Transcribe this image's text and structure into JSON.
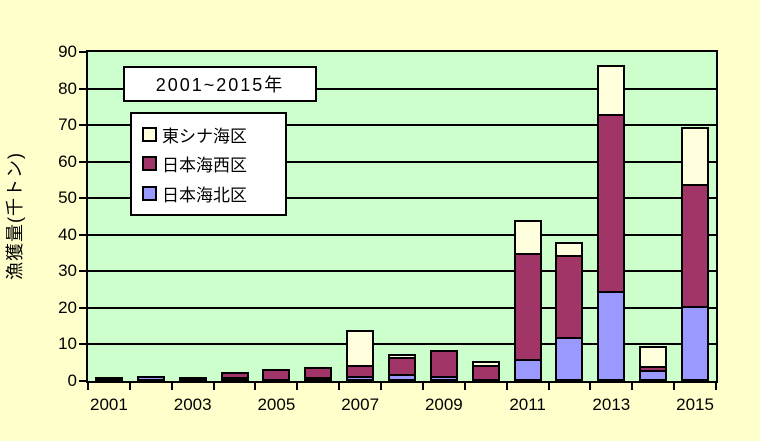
{
  "title_box": "2001~2015年",
  "y_axis_title": "漁獲量(千トン)",
  "colors": {
    "page_bg": "#FFFFCC",
    "plot_bg": "#CCFFCC",
    "series_north": "#9999FF",
    "series_west": "#A13568",
    "series_east": "#FFFFDE",
    "border": "#000000"
  },
  "legend_items": [
    {
      "label": "東シナ海区",
      "color": "#FFFFDE"
    },
    {
      "label": "日本海西区",
      "color": "#A13568"
    },
    {
      "label": "日本海北区",
      "color": "#9999FF"
    }
  ],
  "chart_data": {
    "type": "bar",
    "subtype": "stacked-vertical",
    "title": "2001~2015年",
    "ylabel": "漁獲量(千トン)",
    "xlabel": "",
    "ylim": [
      0,
      90
    ],
    "yticks": [
      0,
      10,
      20,
      30,
      40,
      50,
      60,
      70,
      80,
      90
    ],
    "grid": true,
    "legend_position": "upper-left-inside",
    "categories": [
      "2001",
      "2002",
      "2003",
      "2004",
      "2005",
      "2006",
      "2007",
      "2008",
      "2009",
      "2010",
      "2011",
      "2012",
      "2013",
      "2014",
      "2015"
    ],
    "xtick_labels_shown": [
      "2001",
      "2003",
      "2005",
      "2007",
      "2009",
      "2011",
      "2013",
      "2015"
    ],
    "series": [
      {
        "name": "日本海北区",
        "color": "#9999FF",
        "values": [
          0,
          1.5,
          1.2,
          1,
          0.5,
          1,
          1.5,
          2,
          1.5,
          0.5,
          6,
          12,
          24.5,
          3,
          20.5
        ]
      },
      {
        "name": "日本海西区",
        "color": "#A13568",
        "values": [
          0,
          0,
          0,
          1.5,
          2.8,
          2.8,
          3,
          4.5,
          7,
          4,
          29,
          22.5,
          48.5,
          1,
          33.5
        ]
      },
      {
        "name": "東シナ海区",
        "color": "#FFFFDE",
        "values": [
          1,
          0,
          0,
          0,
          0,
          0,
          9.5,
          1,
          0,
          1,
          9,
          3.5,
          13.5,
          5.5,
          15.5
        ]
      }
    ],
    "totals": [
      1,
      1.5,
      1.2,
      2.5,
      3.3,
      3.8,
      14,
      7.5,
      8.5,
      5.5,
      44,
      38,
      86.5,
      9.5,
      69.5
    ]
  }
}
